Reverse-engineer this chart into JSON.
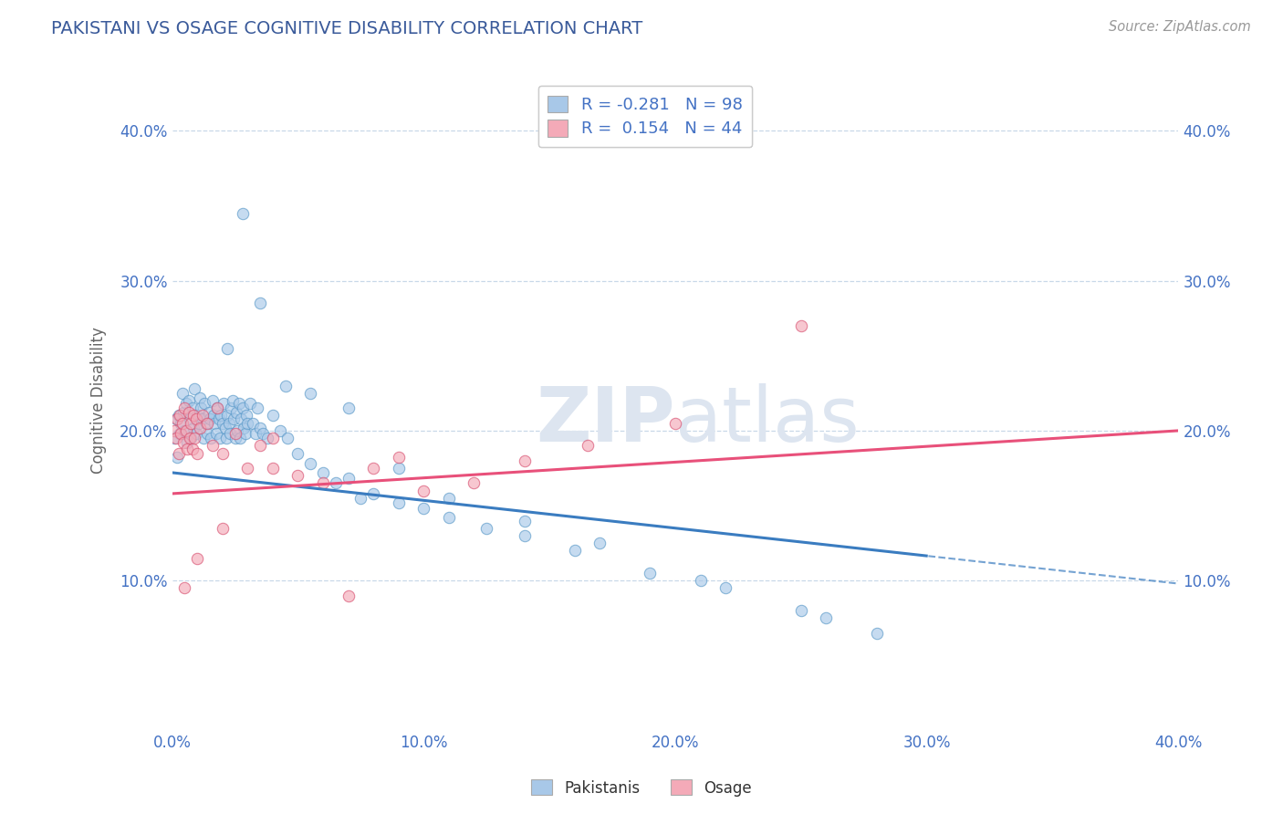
{
  "title": "PAKISTANI VS OSAGE COGNITIVE DISABILITY CORRELATION CHART",
  "source": "Source: ZipAtlas.com",
  "xlim": [
    0.0,
    40.0
  ],
  "ylim": [
    0.0,
    44.0
  ],
  "xticks": [
    0.0,
    10.0,
    20.0,
    30.0,
    40.0
  ],
  "yticks": [
    10.0,
    20.0,
    30.0,
    40.0
  ],
  "pakistani_R": -0.281,
  "pakistani_N": 98,
  "osage_R": 0.154,
  "osage_N": 44,
  "pakistani_color": "#a8c8e8",
  "osage_color": "#f4aab8",
  "pakistani_edge": "#5898c8",
  "osage_edge": "#d85070",
  "trend_p_color": "#3a7cc0",
  "trend_o_color": "#e8507a",
  "grid_color": "#c8d8e8",
  "title_color": "#3a5a9a",
  "tick_color": "#4472c4",
  "watermark_color": "#dde5f0",
  "ylabel": "Cognitive Disability",
  "legend_bottom": [
    "Pakistanis",
    "Osage"
  ],
  "p_trend_intercept": 17.2,
  "p_trend_slope": -0.185,
  "o_trend_intercept": 15.8,
  "o_trend_slope": 0.105,
  "p_solid_end": 30.0,
  "o_solid_end": 40.0,
  "pakistani_x": [
    0.1,
    0.15,
    0.2,
    0.25,
    0.3,
    0.35,
    0.4,
    0.45,
    0.5,
    0.55,
    0.6,
    0.65,
    0.7,
    0.75,
    0.8,
    0.85,
    0.9,
    0.95,
    1.0,
    1.05,
    1.1,
    1.15,
    1.2,
    1.25,
    1.3,
    1.35,
    1.4,
    1.45,
    1.5,
    1.55,
    1.6,
    1.65,
    1.7,
    1.75,
    1.8,
    1.85,
    1.9,
    1.95,
    2.0,
    2.05,
    2.1,
    2.15,
    2.2,
    2.25,
    2.3,
    2.35,
    2.4,
    2.45,
    2.5,
    2.55,
    2.6,
    2.65,
    2.7,
    2.75,
    2.8,
    2.85,
    2.9,
    2.95,
    3.0,
    3.1,
    3.2,
    3.3,
    3.4,
    3.5,
    3.6,
    3.8,
    4.0,
    4.3,
    4.6,
    5.0,
    5.5,
    6.0,
    6.5,
    7.0,
    7.5,
    8.0,
    9.0,
    10.0,
    11.0,
    12.5,
    14.0,
    16.0,
    19.0,
    22.0,
    25.0,
    28.0,
    2.2,
    2.8,
    3.5,
    4.5,
    5.5,
    7.0,
    9.0,
    11.0,
    14.0,
    17.0,
    21.0,
    26.0
  ],
  "pakistani_y": [
    19.5,
    20.8,
    18.2,
    21.0,
    19.8,
    20.5,
    22.5,
    21.2,
    20.0,
    21.8,
    19.2,
    22.0,
    20.8,
    19.5,
    21.5,
    20.2,
    22.8,
    19.8,
    21.0,
    20.5,
    22.2,
    21.5,
    20.8,
    19.5,
    21.8,
    20.5,
    19.8,
    21.2,
    20.8,
    19.5,
    22.0,
    21.0,
    20.5,
    19.8,
    21.5,
    20.8,
    19.5,
    21.0,
    20.5,
    21.8,
    20.2,
    19.5,
    21.0,
    20.5,
    19.8,
    21.5,
    22.0,
    20.8,
    19.5,
    21.2,
    20.0,
    21.8,
    19.5,
    20.8,
    21.5,
    20.2,
    19.8,
    21.0,
    20.5,
    21.8,
    20.5,
    19.8,
    21.5,
    20.2,
    19.8,
    19.5,
    21.0,
    20.0,
    19.5,
    18.5,
    17.8,
    17.2,
    16.5,
    16.8,
    15.5,
    15.8,
    15.2,
    14.8,
    14.2,
    13.5,
    13.0,
    12.0,
    10.5,
    9.5,
    8.0,
    6.5,
    25.5,
    34.5,
    28.5,
    23.0,
    22.5,
    21.5,
    17.5,
    15.5,
    14.0,
    12.5,
    10.0,
    7.5
  ],
  "osage_x": [
    0.1,
    0.15,
    0.2,
    0.25,
    0.3,
    0.35,
    0.4,
    0.45,
    0.5,
    0.55,
    0.6,
    0.65,
    0.7,
    0.75,
    0.8,
    0.85,
    0.9,
    0.95,
    1.0,
    1.1,
    1.2,
    1.4,
    1.6,
    1.8,
    2.0,
    2.5,
    3.0,
    3.5,
    4.0,
    5.0,
    6.0,
    7.0,
    8.0,
    9.0,
    10.0,
    12.0,
    14.0,
    16.5,
    20.0,
    25.0,
    0.5,
    1.0,
    2.0,
    4.0
  ],
  "osage_y": [
    20.0,
    19.5,
    20.8,
    18.5,
    21.0,
    19.8,
    20.5,
    19.2,
    21.5,
    20.0,
    18.8,
    21.2,
    19.5,
    20.5,
    18.8,
    21.0,
    19.5,
    20.8,
    18.5,
    20.2,
    21.0,
    20.5,
    19.0,
    21.5,
    18.5,
    19.8,
    17.5,
    19.0,
    19.5,
    17.0,
    16.5,
    9.0,
    17.5,
    18.2,
    16.0,
    16.5,
    18.0,
    19.0,
    20.5,
    27.0,
    9.5,
    11.5,
    13.5,
    17.5
  ]
}
